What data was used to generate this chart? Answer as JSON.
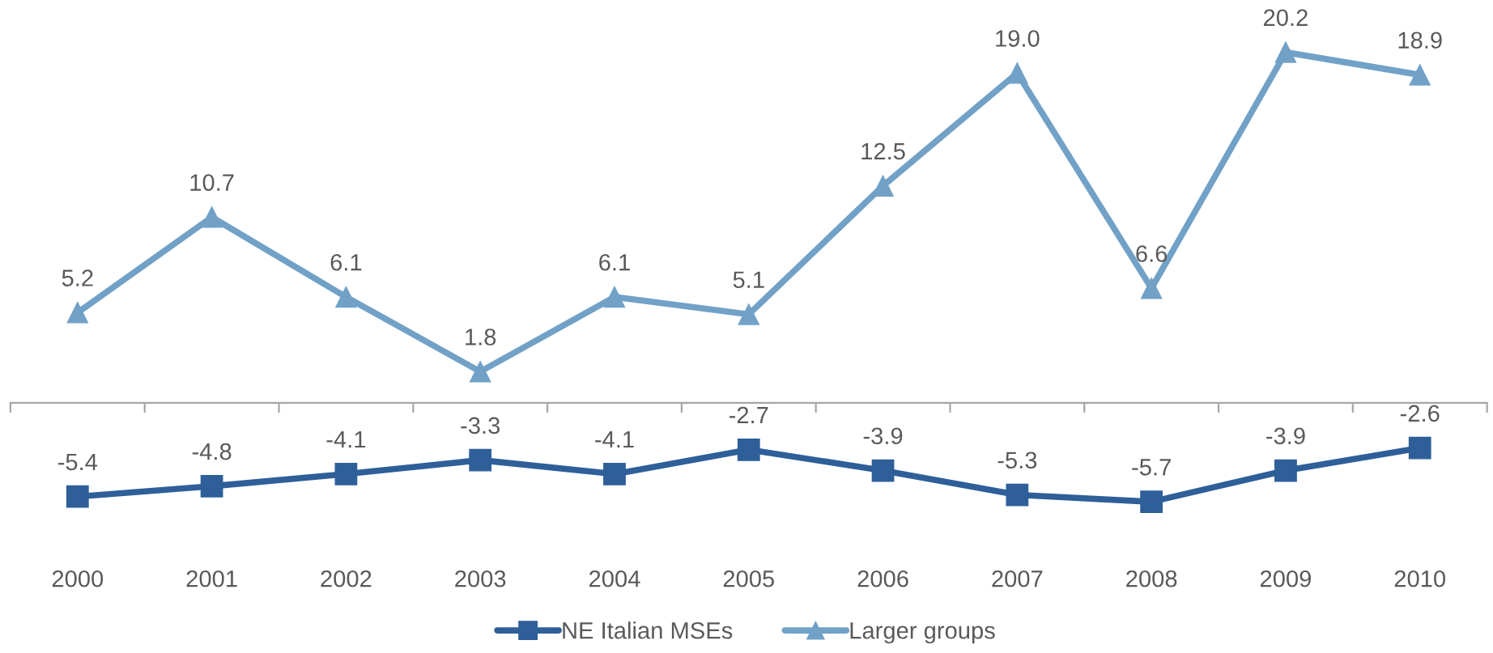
{
  "chart_data": {
    "type": "line",
    "categories": [
      "2000",
      "2001",
      "2002",
      "2003",
      "2004",
      "2005",
      "2006",
      "2007",
      "2008",
      "2009",
      "2010"
    ],
    "series": [
      {
        "name": "NE Italian MSEs",
        "color": "#2e5f99",
        "marker": "square",
        "values": [
          -5.4,
          -4.8,
          -4.1,
          -3.3,
          -4.1,
          -2.7,
          -3.9,
          -5.3,
          -5.7,
          -3.9,
          -2.6
        ],
        "value_labels": [
          "-5.4",
          "-4.8",
          "-4.1",
          "-3.3",
          "-4.1",
          "-2.7",
          "-3.9",
          "-5.3",
          "-5.7",
          "-3.9",
          "-2.6"
        ]
      },
      {
        "name": "Larger groups",
        "color": "#71a1c7",
        "marker": "triangle",
        "values": [
          5.2,
          10.7,
          6.1,
          1.8,
          6.1,
          5.1,
          12.5,
          19.0,
          6.6,
          20.2,
          18.9
        ],
        "value_labels": [
          "5.2",
          "10.7",
          "6.1",
          "1.8",
          "6.1",
          "5.1",
          "12.5",
          "19.0",
          "6.6",
          "20.2",
          "18.9"
        ]
      }
    ],
    "line_style": "solid",
    "legend": "bottom",
    "tick_labels": "x"
  }
}
